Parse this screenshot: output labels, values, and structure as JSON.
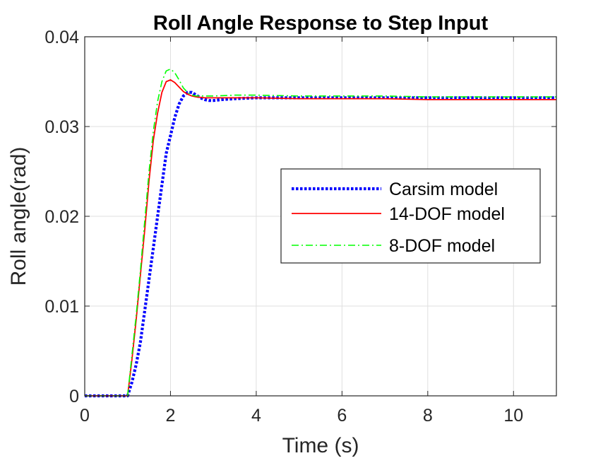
{
  "chart_data": {
    "type": "line",
    "title": "Roll Angle Response to Step Input",
    "xlabel": "Time (s)",
    "ylabel": "Roll angle(rad)",
    "xlim": [
      0,
      11
    ],
    "ylim": [
      0,
      0.04
    ],
    "xticks": [
      0,
      2,
      4,
      6,
      8,
      10
    ],
    "xtick_labels": [
      "0",
      "2",
      "4",
      "6",
      "8",
      "10"
    ],
    "yticks": [
      0,
      0.01,
      0.02,
      0.03,
      0.04
    ],
    "ytick_labels": [
      "0",
      "0.01",
      "0.02",
      "0.03",
      "0.04"
    ],
    "grid": true,
    "legend_position": "center-right",
    "series": [
      {
        "name": "Carsim model",
        "color": "#0000ff",
        "style": "dotted",
        "x": [
          0,
          1.0,
          1.1,
          1.2,
          1.3,
          1.4,
          1.5,
          1.6,
          1.7,
          1.8,
          1.9,
          2.0,
          2.1,
          2.2,
          2.3,
          2.4,
          2.5,
          2.6,
          2.7,
          2.8,
          2.9,
          3.0,
          3.2,
          3.5,
          4.0,
          5.0,
          6.0,
          7.0,
          8.0,
          9.0,
          10.0,
          11.0
        ],
        "y": [
          0,
          0,
          0.0015,
          0.0035,
          0.006,
          0.0095,
          0.013,
          0.0165,
          0.02,
          0.0235,
          0.027,
          0.029,
          0.031,
          0.0325,
          0.0334,
          0.0338,
          0.0338,
          0.0335,
          0.0332,
          0.033,
          0.0329,
          0.0329,
          0.033,
          0.0331,
          0.0332,
          0.0332,
          0.0332,
          0.0332,
          0.0332,
          0.0332,
          0.0332,
          0.0332
        ]
      },
      {
        "name": "14-DOF model",
        "color": "#ff0000",
        "style": "solid",
        "x": [
          0,
          1.0,
          1.1,
          1.2,
          1.3,
          1.4,
          1.5,
          1.6,
          1.7,
          1.8,
          1.9,
          2.0,
          2.1,
          2.2,
          2.3,
          2.4,
          2.5,
          2.6,
          2.8,
          3.0,
          3.3,
          4.0,
          5.0,
          6.0,
          7.0,
          8.0,
          9.0,
          10.0,
          11.0
        ],
        "y": [
          0,
          0,
          0.004,
          0.0085,
          0.0135,
          0.0185,
          0.024,
          0.0285,
          0.0315,
          0.0338,
          0.035,
          0.0352,
          0.0349,
          0.0344,
          0.0339,
          0.0336,
          0.0334,
          0.0333,
          0.0332,
          0.0332,
          0.0332,
          0.0332,
          0.0331,
          0.0331,
          0.0331,
          0.033,
          0.033,
          0.033,
          0.033
        ]
      },
      {
        "name": "8-DOF model",
        "color": "#00ff00",
        "style": "dashdot",
        "x": [
          0,
          1.0,
          1.1,
          1.2,
          1.3,
          1.4,
          1.5,
          1.6,
          1.7,
          1.8,
          1.9,
          2.0,
          2.1,
          2.2,
          2.3,
          2.4,
          2.5,
          2.6,
          2.8,
          3.0,
          3.5,
          4.0,
          5.0,
          6.0,
          7.0,
          8.0,
          9.0,
          10.0,
          11.0
        ],
        "y": [
          0,
          0,
          0.0045,
          0.009,
          0.014,
          0.0195,
          0.025,
          0.0295,
          0.0328,
          0.035,
          0.0362,
          0.0364,
          0.036,
          0.0352,
          0.0343,
          0.0338,
          0.0335,
          0.0334,
          0.0334,
          0.0334,
          0.0335,
          0.0335,
          0.0334,
          0.0334,
          0.0334,
          0.0333,
          0.0333,
          0.0333,
          0.0333
        ]
      }
    ]
  }
}
